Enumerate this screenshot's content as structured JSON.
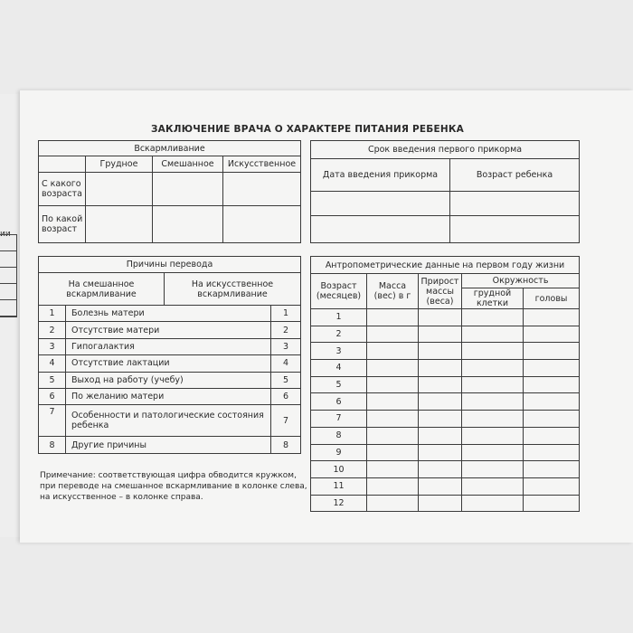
{
  "prev_page_fragment": "ии",
  "title": "ЗАКЛЮЧЕНИЕ ВРАЧА О ХАРАКТЕРЕ ПИТАНИЯ РЕБЕНКА",
  "feeding": {
    "header": "Вскармливание",
    "columns": [
      "Грудное",
      "Смешанное",
      "Искусственное"
    ],
    "rows": [
      "С какого возраста",
      "По какой возраст"
    ]
  },
  "complementary": {
    "header": "Срок введения первого прикорма",
    "columns": [
      "Дата введения прикорма",
      "Возраст ребенка"
    ]
  },
  "reasons": {
    "header": "Причины перевода",
    "left": "На смешанное вскармливание",
    "right": "На искусственное вскармливание",
    "items": [
      {
        "n": "1",
        "label": "Болезнь матери"
      },
      {
        "n": "2",
        "label": "Отсутствие матери"
      },
      {
        "n": "3",
        "label": "Гипогалактия"
      },
      {
        "n": "4",
        "label": "Отсутствие лактации"
      },
      {
        "n": "5",
        "label": "Выход на работу (учебу)"
      },
      {
        "n": "6",
        "label": "По желанию матери"
      },
      {
        "n": "7",
        "label": "Особенности и патологические состояния ребенка"
      },
      {
        "n": "8",
        "label": "Другие причины"
      }
    ]
  },
  "note": "Примечание: соответствующая цифра обводится кружком, при переводе на смешанное вскармливание в колонке слева, на искусственное – в колонке справа.",
  "anthro": {
    "header": "Антропометрические данные на первом году жизни",
    "age": "Возраст (месяцев)",
    "mass": "Масса (вес) в г",
    "gain": "Прирост массы (веса)",
    "circ": "Окружность",
    "chest": "грудной клетки",
    "head": "головы",
    "months": [
      "1",
      "2",
      "3",
      "4",
      "5",
      "6",
      "7",
      "8",
      "9",
      "10",
      "11",
      "12"
    ]
  }
}
